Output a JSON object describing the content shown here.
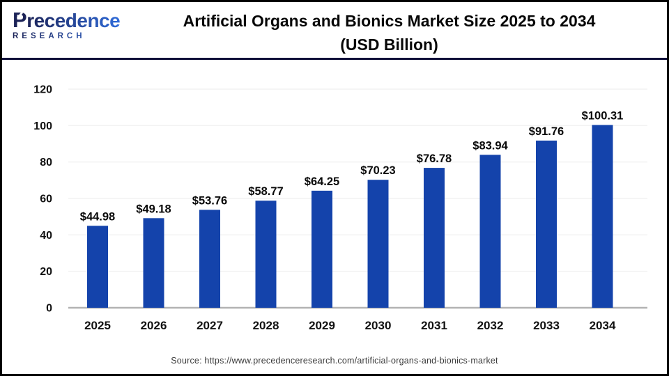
{
  "header": {
    "logo": {
      "brand_initial": "P",
      "brand_rest": "recedence",
      "subtitle": "RESEARCH"
    },
    "title_line1": "Artificial Organs and Bionics Market Size 2025 to 2034",
    "title_line2": "(USD Billion)"
  },
  "chart_data": {
    "type": "bar",
    "title": "Artificial Organs and Bionics Market Size 2025 to 2034 (USD Billion)",
    "categories": [
      "2025",
      "2026",
      "2027",
      "2028",
      "2029",
      "2030",
      "2031",
      "2032",
      "2033",
      "2034"
    ],
    "values": [
      44.98,
      49.18,
      53.76,
      58.77,
      64.25,
      70.23,
      76.78,
      83.94,
      91.76,
      100.31
    ],
    "value_labels": [
      "$44.98",
      "$49.18",
      "$53.76",
      "$58.77",
      "$64.25",
      "$70.23",
      "$76.78",
      "$83.94",
      "$91.76",
      "$100.31"
    ],
    "xlabel": "",
    "ylabel": "",
    "ylim": [
      0,
      120
    ],
    "yticks": [
      0,
      20,
      40,
      60,
      80,
      100,
      120
    ],
    "grid": true,
    "legend_position": "none",
    "bar_color": "#1443ab"
  },
  "footer": {
    "source": "Source: https://www.precedenceresearch.com/artificial-organs-and-bionics-market"
  },
  "colors": {
    "bar": "#1443ab",
    "header_divider": "#10103a",
    "axis_line": "#b3b3b3",
    "gridline": "#f2f2f2",
    "tick_label_text": "#111111",
    "value_label_text": "#0a0a0a",
    "source_text": "#3a3a3a",
    "logo_dark": "#1b2257",
    "logo_light": "#2f6bd9",
    "page_border": "#000000"
  }
}
